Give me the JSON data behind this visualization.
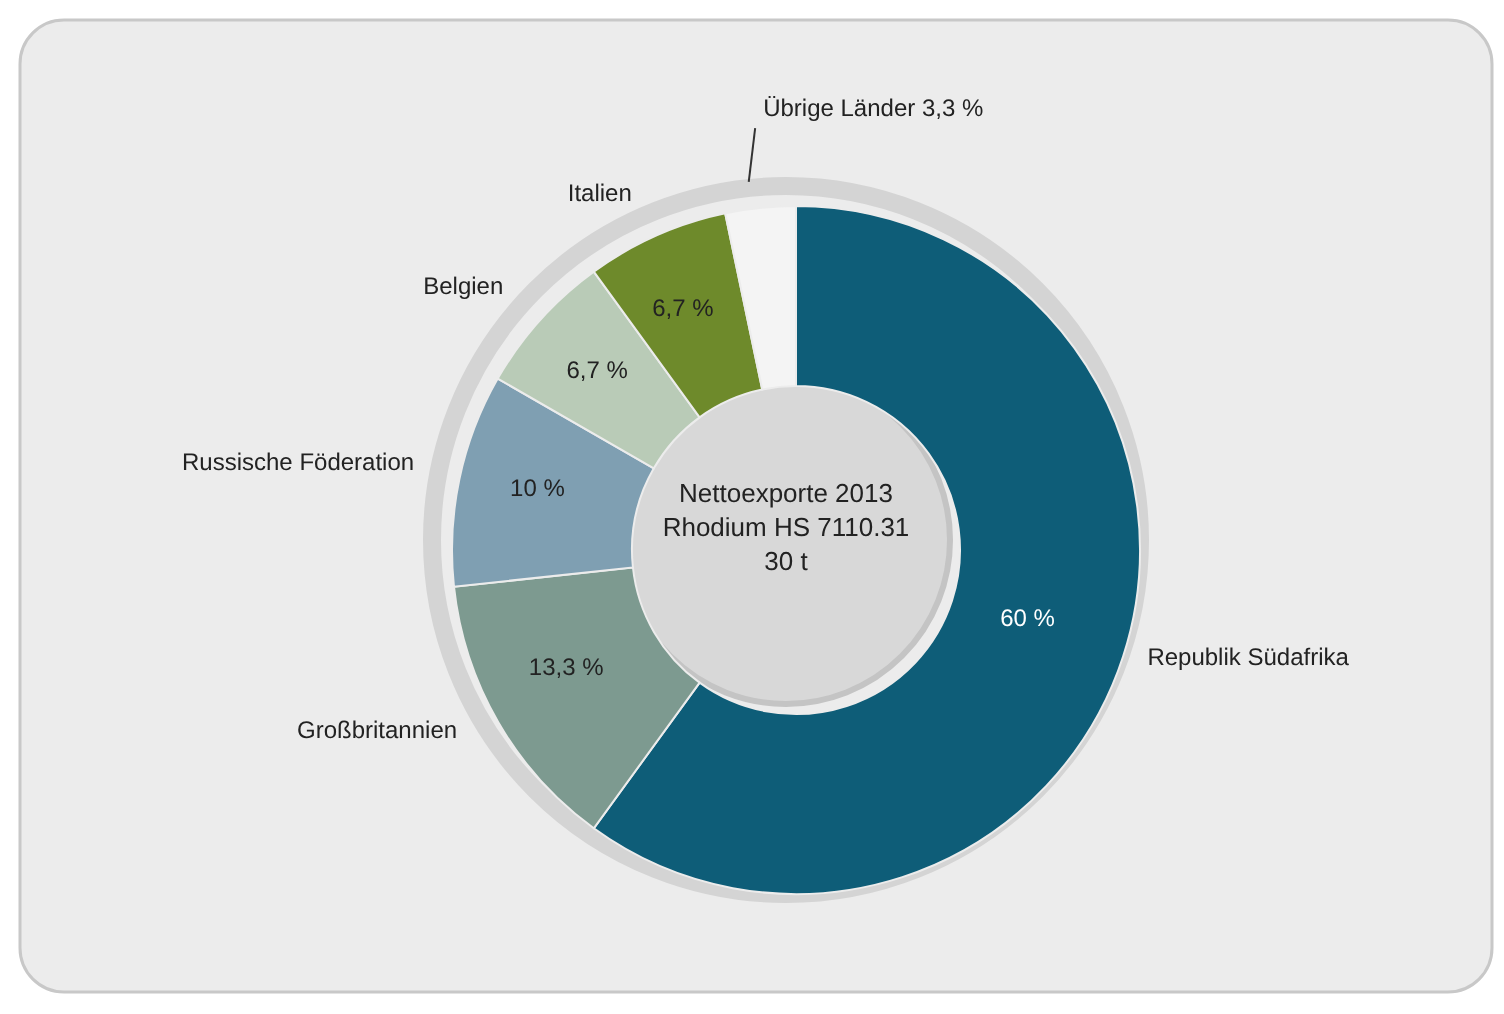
{
  "chart_data": {
    "type": "donut",
    "title": "Nettoexporte 2013",
    "subtitle": "Rhodium HS 7110.31",
    "annotations": [
      "30 t"
    ],
    "categories": [
      "Republik Südafrika",
      "Großbritannien",
      "Russische Föderation",
      "Belgien",
      "Italien",
      "Übrige Länder"
    ],
    "values": [
      60,
      13.3,
      10,
      6.7,
      6.7,
      3.3
    ],
    "colors": [
      "#0e5d78",
      "#7d9a90",
      "#7f9fb2",
      "#b9cbb7",
      "#6e8a2b",
      "#f4f4f4"
    ],
    "value_labels": [
      "60 %",
      "13,3 %",
      "10 %",
      "6,7 %",
      "6,7 %",
      "3,3 %"
    ],
    "legend": false
  }
}
